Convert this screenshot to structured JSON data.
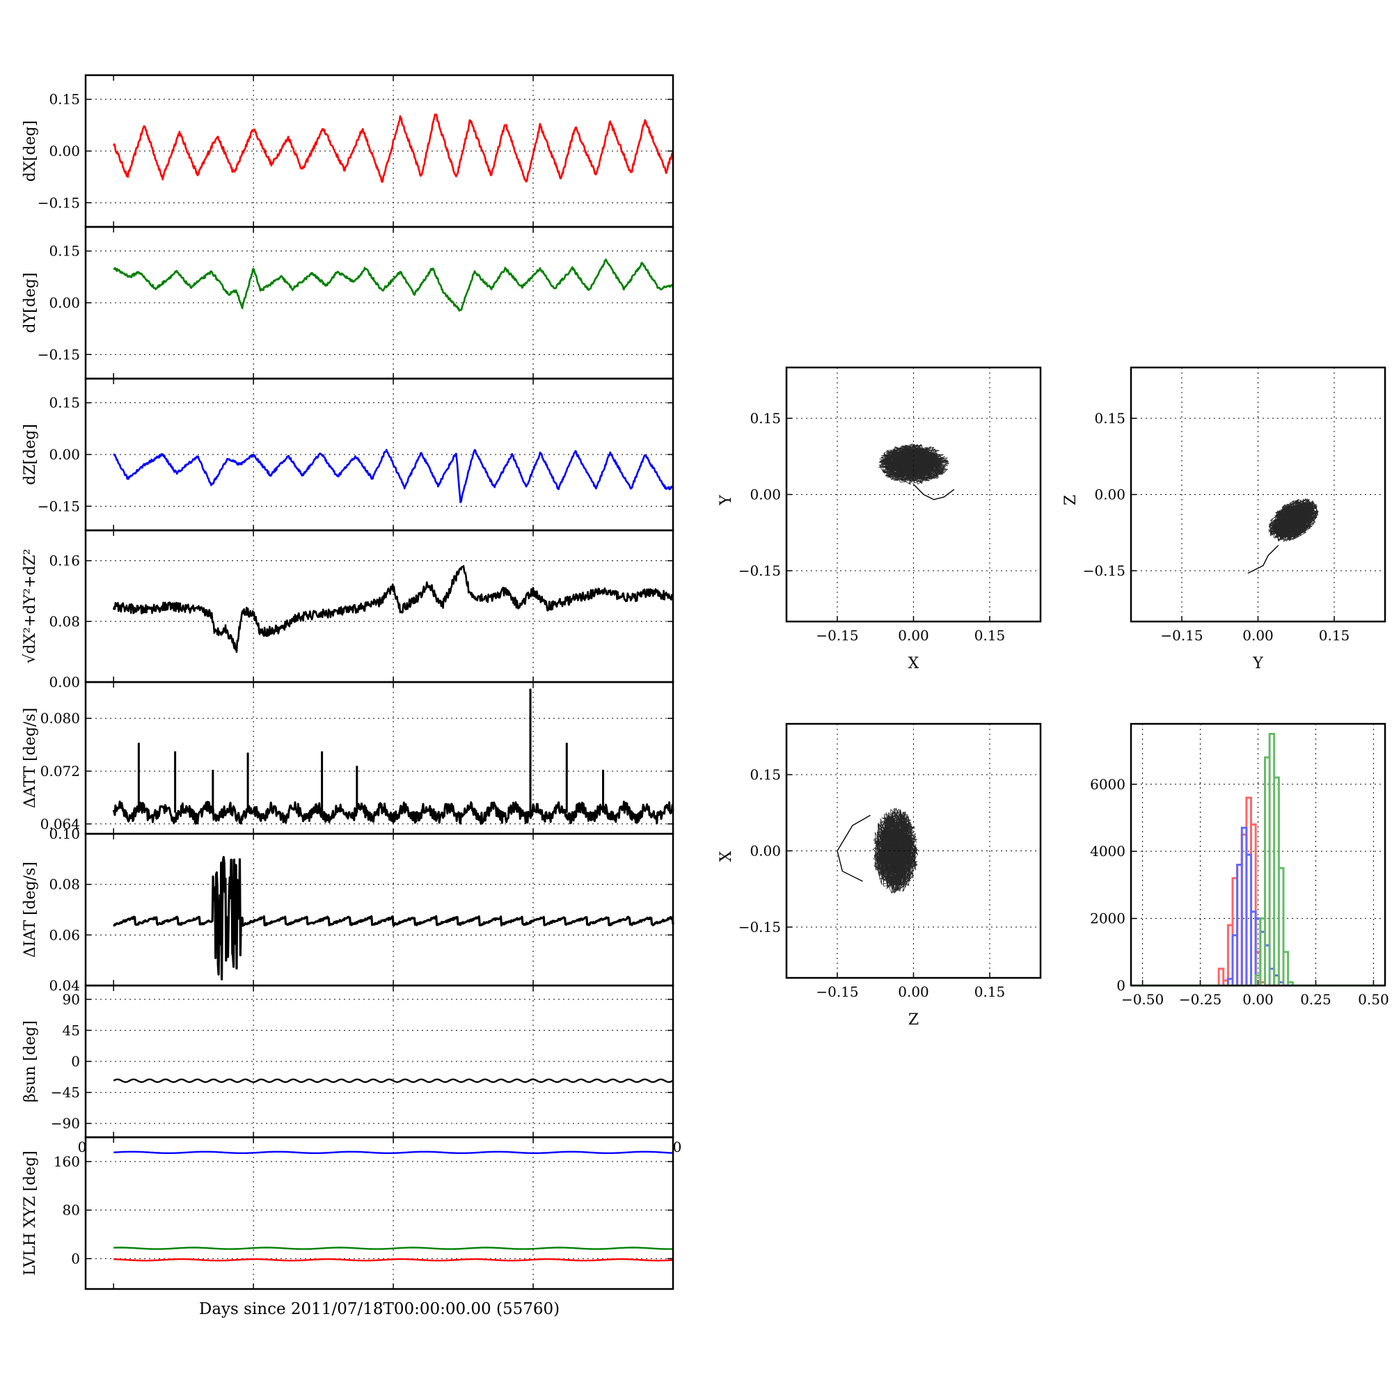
{
  "colors": {
    "red": "#ff0000",
    "green": "#008000",
    "blue": "#0000ff",
    "black": "#000000",
    "hist_red": "#ff6666",
    "hist_green": "#66bb66",
    "hist_blue": "#6666ff"
  },
  "figure": {
    "xlabel": "Days since 2011/07/18T00:00:00.00 (55760)",
    "stray_tick_left": "0",
    "stray_tick_right": "0"
  },
  "chart_data": [
    {
      "id": "dX",
      "type": "line",
      "ylabel": "dX[deg]",
      "ylim": [
        -0.22,
        0.22
      ],
      "yticks": [
        0.15,
        0.0,
        -0.15
      ],
      "ytick_labels": [
        "0.15",
        "0.00",
        "−0.15"
      ],
      "xlim": [
        -0.2,
        4.0
      ],
      "xticks": [
        1,
        2,
        3
      ],
      "grid": true,
      "color": "#ff0000",
      "noise": 0.006,
      "peaks": [
        [
          0.0,
          0.02
        ],
        [
          0.1,
          -0.075
        ],
        [
          0.22,
          0.075
        ],
        [
          0.35,
          -0.08
        ],
        [
          0.47,
          0.055
        ],
        [
          0.6,
          -0.07
        ],
        [
          0.74,
          0.045
        ],
        [
          0.86,
          -0.065
        ],
        [
          1.0,
          0.065
        ],
        [
          1.13,
          -0.04
        ],
        [
          1.25,
          0.04
        ],
        [
          1.35,
          -0.055
        ],
        [
          1.5,
          0.065
        ],
        [
          1.65,
          -0.055
        ],
        [
          1.78,
          0.065
        ],
        [
          1.92,
          -0.09
        ],
        [
          2.05,
          0.1
        ],
        [
          2.2,
          -0.075
        ],
        [
          2.3,
          0.11
        ],
        [
          2.45,
          -0.08
        ],
        [
          2.55,
          0.09
        ],
        [
          2.7,
          -0.07
        ],
        [
          2.8,
          0.08
        ],
        [
          2.95,
          -0.09
        ],
        [
          3.05,
          0.075
        ],
        [
          3.2,
          -0.08
        ],
        [
          3.3,
          0.07
        ],
        [
          3.45,
          -0.07
        ],
        [
          3.55,
          0.085
        ],
        [
          3.7,
          -0.065
        ],
        [
          3.8,
          0.09
        ],
        [
          3.95,
          -0.06
        ],
        [
          4.0,
          0.0
        ]
      ]
    },
    {
      "id": "dY",
      "type": "line",
      "ylabel": "dY[deg]",
      "ylim": [
        -0.22,
        0.22
      ],
      "yticks": [
        0.15,
        0.0,
        -0.15
      ],
      "ytick_labels": [
        "0.15",
        "0.00",
        "−0.15"
      ],
      "xlim": [
        -0.2,
        4.0
      ],
      "xticks": [
        1,
        2,
        3
      ],
      "grid": true,
      "color": "#008000",
      "noise": 0.004,
      "peaks": [
        [
          0.0,
          0.1
        ],
        [
          0.12,
          0.075
        ],
        [
          0.18,
          0.09
        ],
        [
          0.3,
          0.04
        ],
        [
          0.45,
          0.09
        ],
        [
          0.55,
          0.045
        ],
        [
          0.7,
          0.09
        ],
        [
          0.82,
          0.025
        ],
        [
          0.88,
          0.035
        ],
        [
          0.92,
          -0.015
        ],
        [
          1.0,
          0.1
        ],
        [
          1.05,
          0.035
        ],
        [
          1.2,
          0.075
        ],
        [
          1.28,
          0.04
        ],
        [
          1.42,
          0.085
        ],
        [
          1.52,
          0.05
        ],
        [
          1.6,
          0.09
        ],
        [
          1.72,
          0.06
        ],
        [
          1.8,
          0.1
        ],
        [
          1.92,
          0.035
        ],
        [
          2.05,
          0.09
        ],
        [
          2.15,
          0.025
        ],
        [
          2.28,
          0.1
        ],
        [
          2.36,
          0.03
        ],
        [
          2.48,
          -0.025
        ],
        [
          2.58,
          0.09
        ],
        [
          2.7,
          0.04
        ],
        [
          2.8,
          0.1
        ],
        [
          2.92,
          0.045
        ],
        [
          3.05,
          0.1
        ],
        [
          3.15,
          0.04
        ],
        [
          3.28,
          0.1
        ],
        [
          3.4,
          0.035
        ],
        [
          3.52,
          0.125
        ],
        [
          3.65,
          0.04
        ],
        [
          3.78,
          0.115
        ],
        [
          3.9,
          0.04
        ],
        [
          4.0,
          0.05
        ]
      ]
    },
    {
      "id": "dZ",
      "type": "line",
      "ylabel": "dZ[deg]",
      "ylim": [
        -0.22,
        0.22
      ],
      "yticks": [
        0.15,
        0.0,
        -0.15
      ],
      "ytick_labels": [
        "0.15",
        "0.00",
        "−0.15"
      ],
      "xlim": [
        -0.2,
        4.0
      ],
      "xticks": [
        1,
        2,
        3
      ],
      "grid": true,
      "color": "#0000ff",
      "noise": 0.004,
      "peaks": [
        [
          0.0,
          0.0
        ],
        [
          0.1,
          -0.07
        ],
        [
          0.22,
          -0.03
        ],
        [
          0.35,
          0.0
        ],
        [
          0.45,
          -0.055
        ],
        [
          0.6,
          -0.005
        ],
        [
          0.7,
          -0.09
        ],
        [
          0.82,
          -0.01
        ],
        [
          0.9,
          -0.03
        ],
        [
          1.0,
          0.0
        ],
        [
          1.12,
          -0.06
        ],
        [
          1.25,
          -0.005
        ],
        [
          1.35,
          -0.06
        ],
        [
          1.48,
          0.005
        ],
        [
          1.6,
          -0.065
        ],
        [
          1.73,
          -0.005
        ],
        [
          1.85,
          -0.07
        ],
        [
          1.95,
          0.015
        ],
        [
          2.08,
          -0.095
        ],
        [
          2.2,
          0.005
        ],
        [
          2.32,
          -0.09
        ],
        [
          2.45,
          0.005
        ],
        [
          2.48,
          -0.14
        ],
        [
          2.58,
          0.015
        ],
        [
          2.72,
          -0.095
        ],
        [
          2.85,
          0.0
        ],
        [
          2.95,
          -0.095
        ],
        [
          3.05,
          0.005
        ],
        [
          3.18,
          -0.1
        ],
        [
          3.3,
          0.01
        ],
        [
          3.45,
          -0.1
        ],
        [
          3.55,
          0.005
        ],
        [
          3.7,
          -0.1
        ],
        [
          3.8,
          0.0
        ],
        [
          3.95,
          -0.1
        ],
        [
          4.0,
          -0.095
        ]
      ]
    },
    {
      "id": "dR",
      "type": "line",
      "ylabel": "√dX²+dY²+dZ²",
      "ylim": [
        0.0,
        0.2
      ],
      "yticks": [
        0.16,
        0.08,
        0.0
      ],
      "ytick_labels": [
        "0.16",
        "0.08",
        "0.00"
      ],
      "xlim": [
        -0.2,
        4.0
      ],
      "xticks": [
        1,
        2,
        3
      ],
      "grid": true,
      "color": "#000000",
      "noise": 0.006,
      "peaks": [
        [
          0.0,
          0.1
        ],
        [
          0.2,
          0.095
        ],
        [
          0.4,
          0.1
        ],
        [
          0.6,
          0.095
        ],
        [
          0.7,
          0.09
        ],
        [
          0.72,
          0.065
        ],
        [
          0.8,
          0.07
        ],
        [
          0.88,
          0.045
        ],
        [
          0.92,
          0.095
        ],
        [
          1.0,
          0.09
        ],
        [
          1.05,
          0.065
        ],
        [
          1.2,
          0.07
        ],
        [
          1.3,
          0.085
        ],
        [
          1.5,
          0.09
        ],
        [
          1.7,
          0.095
        ],
        [
          1.9,
          0.105
        ],
        [
          2.0,
          0.125
        ],
        [
          2.05,
          0.095
        ],
        [
          2.2,
          0.115
        ],
        [
          2.25,
          0.13
        ],
        [
          2.35,
          0.1
        ],
        [
          2.45,
          0.14
        ],
        [
          2.5,
          0.15
        ],
        [
          2.55,
          0.115
        ],
        [
          2.7,
          0.11
        ],
        [
          2.8,
          0.12
        ],
        [
          2.9,
          0.1
        ],
        [
          3.0,
          0.12
        ],
        [
          3.1,
          0.1
        ],
        [
          3.3,
          0.11
        ],
        [
          3.5,
          0.12
        ],
        [
          3.7,
          0.11
        ],
        [
          3.85,
          0.12
        ],
        [
          4.0,
          0.11
        ]
      ]
    },
    {
      "id": "dATT",
      "type": "line",
      "ylabel": "ΔATT [deg/s]",
      "ylim": [
        0.0625,
        0.0855
      ],
      "yticks": [
        0.08,
        0.072,
        0.064
      ],
      "ytick_labels": [
        "0.080",
        "0.072",
        "0.064"
      ],
      "xlim": [
        -0.2,
        4.0
      ],
      "xticks": [
        1,
        2,
        3
      ],
      "grid": true,
      "color": "#000000",
      "base": 0.0657,
      "amp": 0.0008,
      "spikes": [
        [
          0.18,
          0.0763
        ],
        [
          0.44,
          0.075
        ],
        [
          0.71,
          0.0722
        ],
        [
          0.96,
          0.0748
        ],
        [
          1.49,
          0.075
        ],
        [
          1.74,
          0.0728
        ],
        [
          2.98,
          0.0845
        ],
        [
          3.24,
          0.0763
        ],
        [
          3.5,
          0.0722
        ]
      ]
    },
    {
      "id": "dIAT",
      "type": "line",
      "ylabel": "ΔIAT [deg/s]",
      "ylim": [
        0.04,
        0.1
      ],
      "yticks": [
        0.1,
        0.08,
        0.06,
        0.04
      ],
      "ytick_labels": [
        "0.10",
        "0.08",
        "0.06",
        "0.04"
      ],
      "xlim": [
        -0.2,
        4.0
      ],
      "xticks": [
        1,
        2,
        3
      ],
      "grid": true,
      "color": "#000000",
      "base": 0.0655,
      "amp": 0.0015,
      "burst": [
        0.71,
        0.91
      ],
      "burst_range": [
        0.042,
        0.093
      ]
    },
    {
      "id": "beta_sun",
      "type": "line",
      "ylabel": "βsun [deg]",
      "ylim": [
        -110,
        110
      ],
      "yticks": [
        90,
        45,
        0,
        -45,
        -90
      ],
      "ytick_labels": [
        "90",
        "45",
        "0",
        "−45",
        "−90"
      ],
      "xlim": [
        -0.2,
        4.0
      ],
      "xticks": [
        1,
        2,
        3
      ],
      "grid": true,
      "color": "#000000",
      "base": -28,
      "amp": 2
    },
    {
      "id": "lvlh",
      "type": "line",
      "ylabel": "LVLH XYZ [deg]",
      "ylim": [
        -50,
        200
      ],
      "yticks": [
        160,
        80,
        0
      ],
      "ytick_labels": [
        "160",
        "80",
        "0"
      ],
      "xlim": [
        -0.2,
        4.0
      ],
      "xticks": [
        1,
        2,
        3
      ],
      "grid": true,
      "series": [
        {
          "color": "#0000ff",
          "base": 175
        },
        {
          "color": "#008000",
          "base": 17
        },
        {
          "color": "#ff0000",
          "base": -2
        }
      ]
    },
    {
      "id": "XY",
      "type": "scatter",
      "xlabel": "X",
      "ylabel": "Y",
      "xlim": [
        -0.25,
        0.25
      ],
      "ylim": [
        -0.25,
        0.25
      ],
      "ticks": [
        -0.15,
        0.0,
        0.15
      ],
      "tick_labels": [
        "−0.15",
        "0.00",
        "0.15"
      ],
      "grid": true,
      "cloud": {
        "cx": 0.0,
        "cy": 0.06,
        "rx": 0.07,
        "ry": 0.04
      },
      "tail": [
        [
          0.0,
          0.02
        ],
        [
          0.02,
          0.0
        ],
        [
          0.04,
          -0.01
        ],
        [
          0.06,
          -0.005
        ],
        [
          0.08,
          0.01
        ]
      ]
    },
    {
      "id": "YZ",
      "type": "scatter",
      "xlabel": "Y",
      "ylabel": "Z",
      "xlim": [
        -0.25,
        0.25
      ],
      "ylim": [
        -0.25,
        0.25
      ],
      "ticks": [
        -0.15,
        0.0,
        0.15
      ],
      "tick_labels": [
        "−0.15",
        "0.00",
        "0.15"
      ],
      "grid": true,
      "cloud": {
        "cx": 0.07,
        "cy": -0.05,
        "rx": 0.035,
        "ry": 0.055,
        "tilt": -55
      },
      "tail": [
        [
          0.04,
          -0.1
        ],
        [
          0.02,
          -0.12
        ],
        [
          0.01,
          -0.14
        ],
        [
          -0.02,
          -0.155
        ]
      ]
    },
    {
      "id": "ZX",
      "type": "scatter",
      "xlabel": "Z",
      "ylabel": "X",
      "xlim": [
        -0.25,
        0.25
      ],
      "ylim": [
        -0.25,
        0.25
      ],
      "ticks": [
        -0.15,
        0.0,
        0.15
      ],
      "tick_labels": [
        "−0.15",
        "0.00",
        "0.15"
      ],
      "grid": true,
      "cloud": {
        "cx": -0.035,
        "cy": 0.0,
        "rx": 0.045,
        "ry": 0.085
      },
      "tail": [
        [
          -0.085,
          0.07
        ],
        [
          -0.12,
          0.05
        ],
        [
          -0.15,
          0.0
        ],
        [
          -0.14,
          -0.04
        ],
        [
          -0.1,
          -0.06
        ]
      ]
    },
    {
      "id": "hist",
      "type": "bar",
      "xlim": [
        -0.55,
        0.55
      ],
      "ylim": [
        0,
        7800
      ],
      "xticks": [
        -0.5,
        -0.25,
        0.0,
        0.25,
        0.5
      ],
      "xtick_labels": [
        "−0.50",
        "−0.25",
        "0.00",
        "0.25",
        "0.50"
      ],
      "yticks": [
        6000,
        4000,
        2000,
        0
      ],
      "ytick_labels": [
        "6000",
        "4000",
        "2000",
        "0"
      ],
      "grid": true,
      "series": [
        {
          "color": "#ff6666",
          "x": [
            -0.16,
            -0.14,
            -0.12,
            -0.1,
            -0.08,
            -0.06,
            -0.04,
            -0.02,
            0.0,
            0.02
          ],
          "y": [
            500,
            150,
            1800,
            3200,
            3600,
            4500,
            5600,
            4800,
            1000,
            100
          ]
        },
        {
          "color": "#6666ff",
          "x": [
            -0.12,
            -0.1,
            -0.08,
            -0.06,
            -0.04,
            -0.02,
            0.0,
            0.02,
            0.04,
            0.06,
            0.08,
            0.1
          ],
          "y": [
            200,
            1500,
            3600,
            4700,
            3900,
            2200,
            2000,
            1600,
            1200,
            500,
            300,
            100
          ]
        },
        {
          "color": "#66bb66",
          "x": [
            0.0,
            0.02,
            0.04,
            0.06,
            0.08,
            0.1,
            0.12,
            0.14
          ],
          "y": [
            300,
            2000,
            6800,
            7500,
            6200,
            3500,
            1000,
            100
          ]
        }
      ]
    }
  ]
}
